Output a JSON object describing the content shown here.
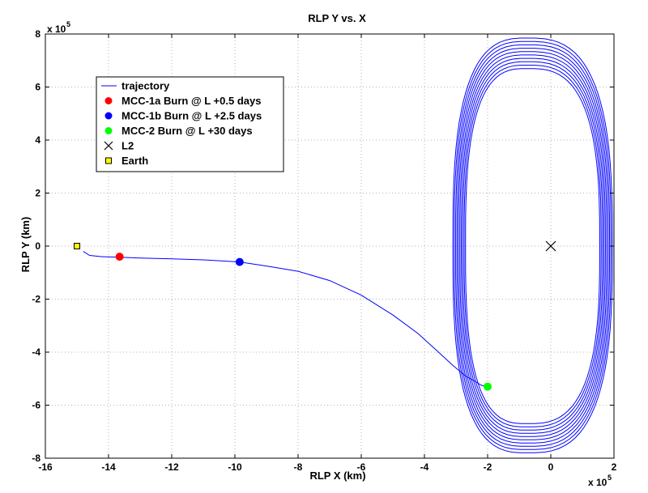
{
  "chart_data": {
    "type": "line",
    "title": "RLP Y vs. X",
    "xlabel": "RLP X (km)",
    "ylabel": "RLP Y (km)",
    "x_multiplier_label": "x 10",
    "y_multiplier_label": "x 10",
    "multiplier_exponent": "5",
    "xlim": [
      -16,
      2
    ],
    "ylim": [
      -8,
      8
    ],
    "xticks": [
      -16,
      -14,
      -12,
      -10,
      -8,
      -6,
      -4,
      -2,
      0,
      2
    ],
    "yticks": [
      -8,
      -6,
      -4,
      -2,
      0,
      2,
      4,
      6,
      8
    ],
    "units_note": "values in units of 1e5 km",
    "grid": true,
    "legend_position": "upper-left",
    "legend": [
      {
        "label": "trajectory",
        "marker": "line",
        "color": "#0000ff"
      },
      {
        "label": "MCC-1a Burn @ L +0.5 days",
        "marker": "dot",
        "color": "#ff0000"
      },
      {
        "label": "MCC-1b Burn @ L +2.5 days",
        "marker": "dot",
        "color": "#0000ff"
      },
      {
        "label": "MCC-2 Burn @ L +30 days",
        "marker": "dot",
        "color": "#00ff00"
      },
      {
        "label": "L2",
        "marker": "x",
        "color": "#000000"
      },
      {
        "label": "Earth",
        "marker": "square",
        "color": "#ffff00"
      }
    ],
    "transfer_trajectory": {
      "x": [
        -14.8,
        -14.6,
        -14.2,
        -13.65,
        -13.0,
        -12.0,
        -11.0,
        -9.85,
        -9.0,
        -8.0,
        -7.0,
        -6.0,
        -5.0,
        -4.2,
        -3.6,
        -3.1,
        -2.7,
        -2.4,
        -2.2,
        -2.05,
        -2.0
      ],
      "y": [
        -0.2,
        -0.35,
        -0.4,
        -0.42,
        -0.45,
        -0.48,
        -0.52,
        -0.6,
        -0.75,
        -0.95,
        -1.3,
        -1.85,
        -2.6,
        -3.3,
        -3.95,
        -4.5,
        -4.9,
        -5.1,
        -5.25,
        -5.3,
        -5.3
      ]
    },
    "halo_orbit": {
      "center_x": -0.75,
      "center_y": 0.0,
      "x_min_range": [
        -3.1,
        -2.7
      ],
      "x_max_range": [
        1.55,
        1.95
      ],
      "y_max_range": [
        6.7,
        7.85
      ],
      "y_min_range": [
        -6.7,
        -7.8
      ],
      "revolutions": 10
    },
    "points": [
      {
        "label": "Earth",
        "x": -15.0,
        "y": 0.0,
        "color": "#ffff00"
      },
      {
        "label": "MCC-1a Burn @ L +0.5 days",
        "x": -13.65,
        "y": -0.4,
        "color": "#ff0000"
      },
      {
        "label": "MCC-1b Burn @ L +2.5 days",
        "x": -9.85,
        "y": -0.6,
        "color": "#0000ff"
      },
      {
        "label": "MCC-2 Burn @ L +30 days",
        "x": -2.0,
        "y": -5.3,
        "color": "#00ff00"
      },
      {
        "label": "L2",
        "x": 0.0,
        "y": 0.0,
        "color": "#000000"
      }
    ]
  }
}
